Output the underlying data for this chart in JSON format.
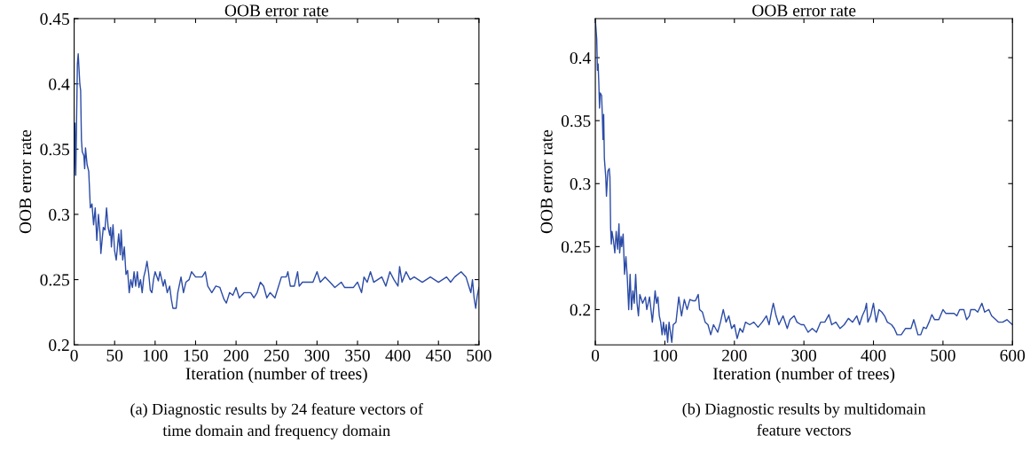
{
  "chart_data": [
    {
      "type": "line",
      "title": "OOB error rate",
      "xlabel": "Iteration (number of trees)",
      "ylabel": "OOB error rate",
      "xlim": [
        0,
        500
      ],
      "xticks": [
        0,
        50,
        100,
        150,
        200,
        250,
        300,
        350,
        400,
        450,
        500
      ],
      "ylim": [
        0.2,
        0.45
      ],
      "yticks": [
        0.2,
        0.25,
        0.3,
        0.35,
        0.4,
        0.45
      ],
      "grid": false,
      "legend": false,
      "annotations": [
        "(a) Diagnostic results by 24 feature vectors of\ntime domain and frequency domain"
      ],
      "series": [
        {
          "color": "#2b4ba6",
          "x": [
            0,
            1,
            2,
            4,
            5,
            7,
            8,
            9,
            10,
            12,
            13,
            14,
            16,
            18,
            20,
            22,
            24,
            26,
            28,
            30,
            32,
            33,
            36,
            38,
            40,
            42,
            44,
            45,
            46,
            48,
            50,
            52,
            55,
            57,
            58,
            60,
            62,
            64,
            66,
            68,
            70,
            72,
            74,
            76,
            78,
            80,
            82,
            84,
            86,
            88,
            90,
            92,
            94,
            96,
            98,
            100,
            104,
            106,
            110,
            112,
            115,
            118,
            120,
            122,
            126,
            128,
            132,
            135,
            138,
            142,
            145,
            150,
            158,
            162,
            165,
            170,
            175,
            180,
            185,
            188,
            192,
            196,
            200,
            204,
            210,
            218,
            222,
            226,
            230,
            234,
            238,
            242,
            248,
            252,
            256,
            262,
            264,
            267,
            272,
            276,
            278,
            282,
            295,
            300,
            304,
            310,
            316,
            322,
            330,
            334,
            345,
            350,
            355,
            358,
            362,
            366,
            370,
            380,
            385,
            390,
            395,
            400,
            402,
            405,
            410,
            415,
            420,
            430,
            440,
            450,
            460,
            465,
            470,
            478,
            484,
            488,
            490,
            492,
            494,
            496,
            498,
            500
          ],
          "values": [
            0.33,
            0.37,
            0.33,
            0.415,
            0.423,
            0.4,
            0.395,
            0.357,
            0.348,
            0.345,
            0.335,
            0.351,
            0.338,
            0.333,
            0.305,
            0.308,
            0.292,
            0.305,
            0.28,
            0.3,
            0.285,
            0.27,
            0.29,
            0.288,
            0.305,
            0.29,
            0.284,
            0.29,
            0.275,
            0.292,
            0.272,
            0.265,
            0.285,
            0.269,
            0.288,
            0.265,
            0.275,
            0.254,
            0.257,
            0.24,
            0.25,
            0.244,
            0.256,
            0.245,
            0.256,
            0.244,
            0.25,
            0.24,
            0.252,
            0.257,
            0.264,
            0.255,
            0.242,
            0.24,
            0.25,
            0.256,
            0.249,
            0.256,
            0.245,
            0.25,
            0.24,
            0.245,
            0.235,
            0.228,
            0.228,
            0.24,
            0.252,
            0.24,
            0.248,
            0.25,
            0.256,
            0.252,
            0.252,
            0.256,
            0.245,
            0.24,
            0.245,
            0.244,
            0.235,
            0.232,
            0.24,
            0.238,
            0.244,
            0.236,
            0.24,
            0.24,
            0.236,
            0.24,
            0.248,
            0.245,
            0.236,
            0.24,
            0.236,
            0.244,
            0.252,
            0.252,
            0.256,
            0.245,
            0.245,
            0.256,
            0.245,
            0.248,
            0.248,
            0.256,
            0.248,
            0.252,
            0.248,
            0.244,
            0.248,
            0.244,
            0.244,
            0.248,
            0.24,
            0.252,
            0.248,
            0.256,
            0.248,
            0.252,
            0.245,
            0.256,
            0.25,
            0.245,
            0.26,
            0.248,
            0.256,
            0.25,
            0.252,
            0.248,
            0.252,
            0.248,
            0.252,
            0.248,
            0.252,
            0.256,
            0.252,
            0.244,
            0.24,
            0.25,
            0.236,
            0.228,
            0.238,
            0.244
          ]
        }
      ]
    },
    {
      "type": "line",
      "title": "OOB error rate",
      "xlabel": "Iteration (number of trees)",
      "ylabel": "OOB error rate",
      "xlim": [
        0,
        600
      ],
      "xticks": [
        0,
        100,
        200,
        300,
        400,
        500,
        600
      ],
      "ylim": [
        0.172,
        0.431
      ],
      "yticks": [
        0.2,
        0.25,
        0.3,
        0.35,
        0.4
      ],
      "grid": false,
      "legend": false,
      "annotations": [
        "(b) Diagnostic results by multidomain\nfeature vectors"
      ],
      "series": [
        {
          "color": "#2b4ba6",
          "x": [
            0,
            2,
            3,
            4,
            5,
            6,
            7,
            9,
            10,
            11,
            12,
            13,
            15,
            16,
            18,
            20,
            21,
            22,
            23,
            24,
            26,
            28,
            30,
            32,
            34,
            35,
            37,
            38,
            40,
            42,
            44,
            46,
            48,
            50,
            52,
            54,
            56,
            58,
            60,
            62,
            64,
            68,
            72,
            74,
            78,
            80,
            82,
            84,
            86,
            88,
            90,
            92,
            94,
            96,
            98,
            100,
            102,
            104,
            106,
            110,
            112,
            116,
            118,
            120,
            124,
            128,
            132,
            136,
            140,
            144,
            148,
            150,
            154,
            158,
            162,
            166,
            170,
            176,
            180,
            184,
            188,
            192,
            196,
            200,
            204,
            208,
            212,
            216,
            222,
            228,
            234,
            240,
            246,
            250,
            254,
            256,
            260,
            264,
            270,
            276,
            280,
            286,
            290,
            296,
            300,
            306,
            312,
            318,
            324,
            330,
            336,
            340,
            346,
            352,
            358,
            364,
            370,
            376,
            380,
            384,
            388,
            390,
            392,
            396,
            400,
            404,
            408,
            412,
            416,
            420,
            426,
            430,
            434,
            440,
            446,
            454,
            458,
            464,
            468,
            472,
            476,
            480,
            484,
            488,
            494,
            500,
            504,
            510,
            516,
            520,
            524,
            530,
            534,
            538,
            540,
            546,
            550,
            556,
            560,
            566,
            570,
            576,
            580,
            586,
            592,
            596,
            600
          ],
          "values": [
            0.43,
            0.415,
            0.39,
            0.395,
            0.38,
            0.36,
            0.372,
            0.37,
            0.355,
            0.335,
            0.355,
            0.32,
            0.305,
            0.29,
            0.31,
            0.312,
            0.305,
            0.265,
            0.252,
            0.262,
            0.255,
            0.245,
            0.262,
            0.248,
            0.268,
            0.245,
            0.258,
            0.25,
            0.26,
            0.228,
            0.242,
            0.225,
            0.2,
            0.228,
            0.2,
            0.215,
            0.205,
            0.228,
            0.205,
            0.195,
            0.212,
            0.205,
            0.21,
            0.2,
            0.21,
            0.2,
            0.19,
            0.202,
            0.215,
            0.205,
            0.21,
            0.195,
            0.19,
            0.18,
            0.19,
            0.18,
            0.188,
            0.174,
            0.19,
            0.174,
            0.188,
            0.19,
            0.2,
            0.21,
            0.195,
            0.208,
            0.2,
            0.208,
            0.207,
            0.207,
            0.212,
            0.2,
            0.198,
            0.19,
            0.188,
            0.18,
            0.188,
            0.182,
            0.19,
            0.2,
            0.19,
            0.195,
            0.185,
            0.188,
            0.177,
            0.185,
            0.182,
            0.19,
            0.188,
            0.19,
            0.186,
            0.19,
            0.195,
            0.188,
            0.2,
            0.205,
            0.195,
            0.188,
            0.195,
            0.185,
            0.192,
            0.195,
            0.19,
            0.188,
            0.188,
            0.182,
            0.185,
            0.182,
            0.19,
            0.19,
            0.196,
            0.188,
            0.19,
            0.185,
            0.188,
            0.193,
            0.19,
            0.195,
            0.188,
            0.195,
            0.2,
            0.205,
            0.19,
            0.195,
            0.205,
            0.19,
            0.2,
            0.198,
            0.195,
            0.19,
            0.188,
            0.185,
            0.18,
            0.18,
            0.185,
            0.185,
            0.192,
            0.18,
            0.18,
            0.186,
            0.185,
            0.19,
            0.196,
            0.192,
            0.192,
            0.2,
            0.197,
            0.197,
            0.197,
            0.195,
            0.2,
            0.2,
            0.192,
            0.195,
            0.2,
            0.2,
            0.198,
            0.205,
            0.198,
            0.2,
            0.195,
            0.192,
            0.19,
            0.19,
            0.192,
            0.19,
            0.188
          ]
        }
      ]
    }
  ]
}
